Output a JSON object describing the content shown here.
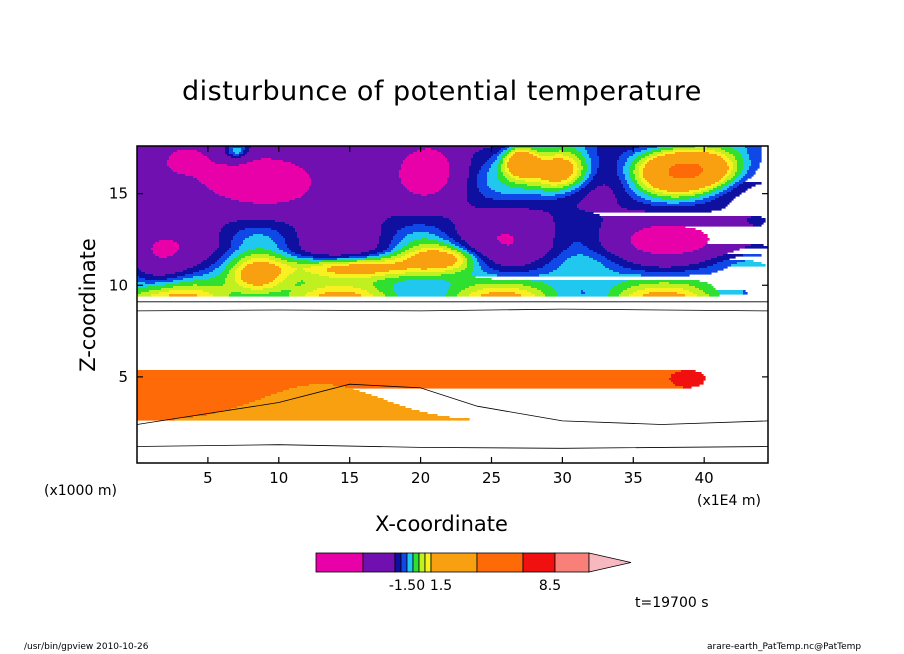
{
  "chart_data": {
    "type": "heatmap",
    "title": "disturbunce of potential temperature",
    "xlabel": "X-coordinate",
    "ylabel": "Z-coordinate",
    "x_unit_note": "(x1000 m)",
    "x_unit_note2": "(x1E4 m)",
    "xlim": [
      0,
      44.5
    ],
    "ylim": [
      0.3,
      17.6
    ],
    "x_ticks": [
      "5",
      "10",
      "15",
      "20",
      "25",
      "30",
      "35",
      "40"
    ],
    "x_tick_values": [
      5,
      10,
      15,
      20,
      25,
      30,
      35,
      40
    ],
    "y_ticks": [
      "5",
      "10",
      "15"
    ],
    "y_tick_values": [
      5,
      10,
      15
    ],
    "time_label": "t=19700 s",
    "colorbar": {
      "colors": [
        "#e800a8",
        "#7010b0",
        "#1010a0",
        "#1048e8",
        "#20c8f0",
        "#30e030",
        "#c0f020",
        "#f8f020",
        "#f8a010",
        "#ff6a08",
        "#f01010",
        "#f88078",
        "#f8b8c0"
      ],
      "tick_labels": [
        "-1.50",
        "1.5",
        "8.5"
      ],
      "level_bands": [
        {
          "color": "#e800a8",
          "lo": 0,
          "hi": 1
        },
        {
          "color": "#7010b0",
          "lo": 1,
          "hi": 2
        },
        {
          "color": "#1010a0",
          "lo": 2,
          "hi": 2.3
        },
        {
          "color": "#1048e8",
          "lo": 2.3,
          "hi": 2.5
        },
        {
          "color": "#20c8f0",
          "lo": 2.5,
          "hi": 2.7
        },
        {
          "color": "#30e030",
          "lo": 2.7,
          "hi": 2.9
        },
        {
          "color": "#c0f020",
          "lo": 2.9,
          "hi": 3.1
        },
        {
          "color": "#f8f020",
          "lo": 3.1,
          "hi": 3.3
        },
        {
          "color": "#f8a010",
          "lo": 3.3,
          "hi": 4.3
        },
        {
          "color": "#ff6a08",
          "lo": 4.3,
          "hi": 5.3
        },
        {
          "color": "#f01010",
          "lo": 5.3,
          "hi": 6.3
        },
        {
          "color": "#f88078",
          "lo": 6.3,
          "hi": 7.3
        },
        {
          "color": "#f8b8c0",
          "lo": 7.3,
          "hi": 8.3
        }
      ]
    },
    "footer_left": "/usr/bin/gpview   2010-10-26",
    "footer_right": "arare-earth_PatTemp.nc@PatTemp"
  },
  "colors": {
    "background": "#ffffff",
    "axes": "#000000"
  }
}
